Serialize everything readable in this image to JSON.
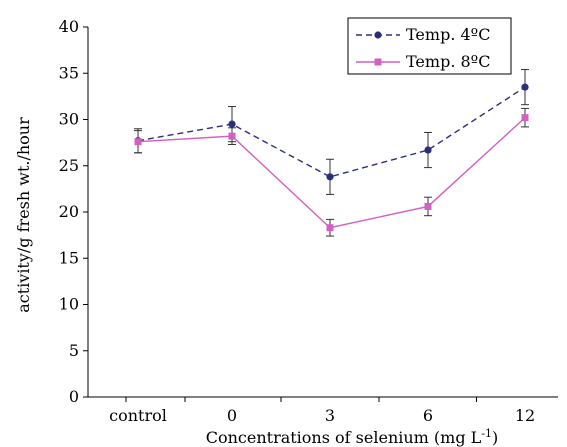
{
  "chart_data": {
    "type": "line",
    "title": "",
    "xlabel_main": "Concentrations of selenium (mg L",
    "xlabel_sup": "-1",
    "xlabel_tail": ")",
    "ylabel": "activity/g fresh wt./hour",
    "categories": [
      "control",
      "0",
      "3",
      "6",
      "12"
    ],
    "ylim": [
      0,
      40
    ],
    "yticks": [
      "0",
      "5",
      "10",
      "15",
      "20",
      "25",
      "30",
      "35",
      "40"
    ],
    "legend_position": "top-right",
    "grid": false,
    "series": [
      {
        "name": "Temp. 4ºC",
        "color": "#2b2f7a",
        "line_style": "dashed",
        "marker": "circle",
        "values": [
          27.7,
          29.5,
          23.8,
          26.7,
          33.5
        ],
        "errors": [
          1.3,
          1.9,
          1.9,
          1.9,
          1.9
        ]
      },
      {
        "name": "Temp. 8ºC",
        "color": "#d25fc2",
        "line_style": "solid",
        "marker": "square",
        "values": [
          27.6,
          28.2,
          18.3,
          20.6,
          30.2
        ],
        "errors": [
          1.2,
          0.9,
          0.9,
          1.0,
          1.0
        ]
      }
    ]
  }
}
